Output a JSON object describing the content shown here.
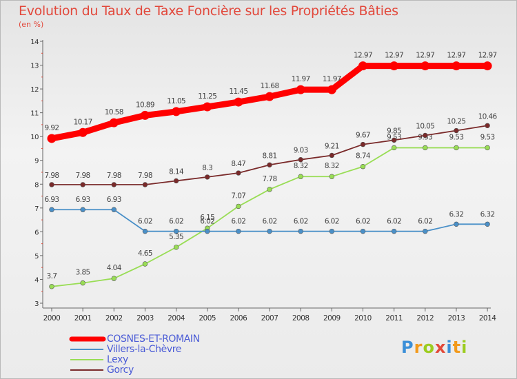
{
  "header": {
    "title": "Evolution du Taux de Taxe Foncière sur les Propriétés Bâties",
    "unit": "(en %)"
  },
  "logo": {
    "text": "Proxiti",
    "colors": [
      "#3a8fd8",
      "#f29a1c",
      "#9ccc1f",
      "#e24a3a",
      "#3a8fd8",
      "#f29a1c",
      "#9ccc1f"
    ]
  },
  "chart_data": {
    "type": "line",
    "title": "Evolution du Taux de Taxe Foncière sur les Propriétés Bâties",
    "ylabel": "(en %)",
    "xlabel": "",
    "x": [
      "2000",
      "2001",
      "2002",
      "2003",
      "2004",
      "2005",
      "2006",
      "2007",
      "2008",
      "2009",
      "2010",
      "2011",
      "2012",
      "2013",
      "2014"
    ],
    "ylim": [
      3,
      14
    ],
    "yticks": [
      3,
      4,
      5,
      6,
      7,
      8,
      9,
      10,
      11,
      12,
      13,
      14
    ],
    "grid": false,
    "legend_position": "bottom-left",
    "series": [
      {
        "name": "COSNES-ET-ROMAIN",
        "color": "#ff0000",
        "emphasis": true,
        "values": [
          9.92,
          10.17,
          10.58,
          10.89,
          11.05,
          11.25,
          11.45,
          11.68,
          11.97,
          11.97,
          12.97,
          12.97,
          12.97,
          12.97,
          12.97
        ],
        "labels": [
          "9.92",
          "10.17",
          "10.58",
          "10.89",
          "11.05",
          "11.25",
          "11.45",
          "11.68",
          "11.97",
          "11.97",
          "12.97",
          "12.97",
          "12.97",
          "12.97",
          "12.97"
        ]
      },
      {
        "name": "Villers-la-Chèvre",
        "color": "#4a90c8",
        "emphasis": false,
        "values": [
          6.93,
          6.93,
          6.93,
          6.02,
          6.02,
          6.02,
          6.02,
          6.02,
          6.02,
          6.02,
          6.02,
          6.02,
          6.02,
          6.32,
          6.32
        ],
        "labels": [
          "6.93",
          "6.93",
          "6.93",
          "6.02",
          "6.02",
          "6.02",
          "6.02",
          "6.02",
          "6.02",
          "6.02",
          "6.02",
          "6.02",
          "6.02",
          "6.32",
          "6.32"
        ]
      },
      {
        "name": "Lexy",
        "color": "#99dd55",
        "emphasis": false,
        "values": [
          3.7,
          3.85,
          4.04,
          4.65,
          5.35,
          6.15,
          7.07,
          7.78,
          8.32,
          8.32,
          8.74,
          9.53,
          9.53,
          9.53,
          9.53
        ],
        "labels": [
          "3.7",
          "3.85",
          "4.04",
          "4.65",
          "5.35",
          "6.15",
          "7.07",
          "7.78",
          "8.32",
          "8.32",
          "8.74",
          "9.53",
          "9.53",
          "9.53",
          "9.53"
        ]
      },
      {
        "name": "Gorcy",
        "color": "#7a2a2a",
        "emphasis": false,
        "values": [
          7.98,
          7.98,
          7.98,
          7.98,
          8.14,
          8.3,
          8.47,
          8.81,
          9.03,
          9.21,
          9.67,
          9.85,
          10.05,
          10.25,
          10.46
        ],
        "labels": [
          "7.98",
          "7.98",
          "7.98",
          "7.98",
          "8.14",
          "8.3",
          "8.47",
          "8.81",
          "9.03",
          "9.21",
          "9.67",
          "9.85",
          "10.05",
          "10.25",
          "10.46"
        ]
      }
    ]
  }
}
